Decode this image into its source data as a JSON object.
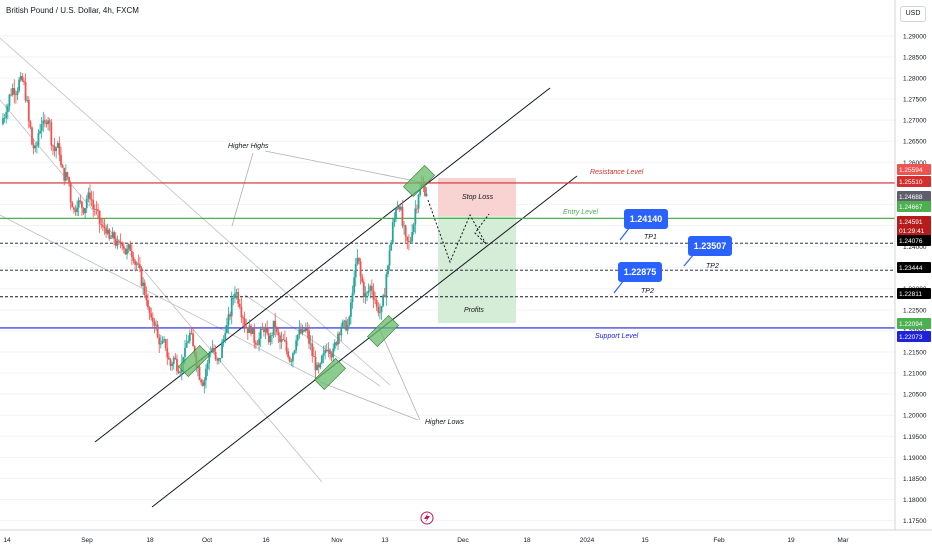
{
  "header": {
    "title": "British Pound / U.S. Dollar, 4h, FXCM",
    "currency_button": "USD"
  },
  "colors": {
    "up": "#26a69a",
    "down": "#ef5350",
    "resistance": "#d32f2f",
    "entry": "#4caf50",
    "support": "#1e22d8",
    "callout": "#2962ff",
    "stop_zone": "#f9d2d2",
    "profit_zone": "#d5ecd6",
    "marker": "#66bb6a",
    "axis_text": "#131722",
    "grid": "#f0f3fa"
  },
  "icons": {
    "footer": "lightning-icon"
  },
  "chart_data": {
    "type": "candlestick",
    "title": "British Pound / U.S. Dollar, 4h, FXCM",
    "price_axis": {
      "range": [
        1.173,
        1.2985
      ],
      "ticks": [
        "1.29000",
        "1.28500",
        "1.28000",
        "1.27500",
        "1.27000",
        "1.26500",
        "1.26000",
        "1.25500",
        "1.25000",
        "1.24500",
        "1.24000",
        "1.23500",
        "1.23000",
        "1.22500",
        "1.22000",
        "1.21500",
        "1.21000",
        "1.20500",
        "1.20000",
        "1.19500",
        "1.19000",
        "1.18500",
        "1.18000",
        "1.17500"
      ]
    },
    "time_axis": {
      "ticks": [
        "14",
        "Sep",
        "18",
        "Oct",
        "16",
        "Nov",
        "13",
        "Dec",
        "18",
        "2024",
        "15",
        "Feb",
        "19",
        "Mar"
      ]
    },
    "price_badges": [
      {
        "value": "1.25594",
        "bg": "#ef5350"
      },
      {
        "value": "1.25510",
        "bg": "#d32f2f"
      },
      {
        "value": "1.24688",
        "bg": "#5d606b"
      },
      {
        "value": "1.24667",
        "bg": "#4caf50"
      },
      {
        "value": "1.24591",
        "sub": "01:29:41",
        "bg": "#b71c1c"
      },
      {
        "value": "1.24076",
        "bg": "#000000"
      },
      {
        "value": "1.23444",
        "bg": "#000000"
      },
      {
        "value": "1.22811",
        "bg": "#000000"
      },
      {
        "value": "1.22094",
        "bg": "#4caf50"
      },
      {
        "value": "1.22073",
        "bg": "#1e22d8"
      }
    ],
    "levels": [
      {
        "name": "Resistance Level",
        "value": 1.2551,
        "style": "solid",
        "color": "#d32f2f"
      },
      {
        "name": "Entry Level",
        "value": 1.2467,
        "style": "solid",
        "color": "#4caf50"
      },
      {
        "name": "TP1",
        "value": 1.2408,
        "style": "dashed",
        "color": "#131722"
      },
      {
        "name": "TP2",
        "value": 1.2344,
        "style": "dashed",
        "color": "#131722"
      },
      {
        "name": "TP2",
        "value": 1.2281,
        "style": "dashed",
        "color": "#131722"
      },
      {
        "name": "Support Level",
        "value": 1.2207,
        "style": "solid",
        "color": "#1e22d8"
      }
    ],
    "zones": {
      "stop_loss": "Stop Loss",
      "profits": "Profits"
    },
    "callouts": [
      "1.24140",
      "1.23507",
      "1.22875"
    ],
    "annotations": [
      "Higher Highs",
      "Higher Lows"
    ],
    "close_path": [
      1.27,
      1.272,
      1.275,
      1.278,
      1.276,
      1.279,
      1.28,
      1.277,
      1.271,
      1.265,
      1.262,
      1.266,
      1.27,
      1.268,
      1.272,
      1.266,
      1.262,
      1.265,
      1.26,
      1.256,
      1.258,
      1.252,
      1.248,
      1.25,
      1.251,
      1.248,
      1.251,
      1.253,
      1.249,
      1.249,
      1.246,
      1.244,
      1.245,
      1.241,
      1.243,
      1.241,
      1.24,
      1.242,
      1.238,
      1.24,
      1.239,
      1.236,
      1.236,
      1.232,
      1.23,
      1.226,
      1.222,
      1.223,
      1.219,
      1.216,
      1.218,
      1.215,
      1.211,
      1.214,
      1.212,
      1.21,
      1.214,
      1.216,
      1.22,
      1.217,
      1.213,
      1.21,
      1.207,
      1.21,
      1.214,
      1.217,
      1.213,
      1.212,
      1.216,
      1.22,
      1.222,
      1.226,
      1.23,
      1.228,
      1.225,
      1.222,
      1.22,
      1.221,
      1.218,
      1.217,
      1.219,
      1.221,
      1.219,
      1.217,
      1.222,
      1.22,
      1.217,
      1.218,
      1.216,
      1.213,
      1.214,
      1.218,
      1.22,
      1.219,
      1.221,
      1.218,
      1.215,
      1.212,
      1.21,
      1.213,
      1.215,
      1.217,
      1.214,
      1.216,
      1.219,
      1.221,
      1.222,
      1.22,
      1.225,
      1.232,
      1.238,
      1.234,
      1.229,
      1.228,
      1.231,
      1.229,
      1.226,
      1.224,
      1.226,
      1.232,
      1.238,
      1.244,
      1.249,
      1.251,
      1.246,
      1.242,
      1.24,
      1.243,
      1.248,
      1.252,
      1.255,
      1.253
    ]
  }
}
